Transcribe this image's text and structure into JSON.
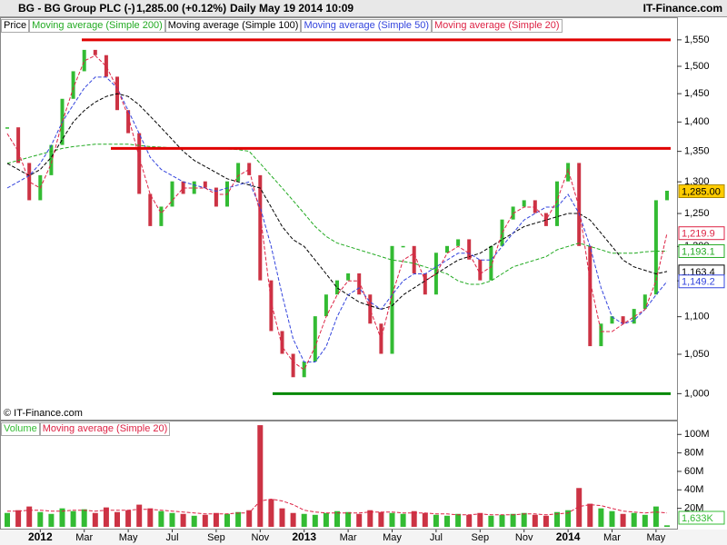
{
  "header": {
    "symbol": "BG - BG Group PLC (-)",
    "quote": "1,285.00 (+0.12%)",
    "period": "Daily  May 19 2014 10:09",
    "brand": "IT-Finance.com"
  },
  "copyright": "© IT-Finance.com",
  "chart_data": [
    {
      "type": "stock",
      "log_scale": true,
      "ylim": [
        987,
        1562
      ],
      "yticks": [
        {
          "value": 1000,
          "label": "1,000"
        },
        {
          "value": 1050,
          "label": "1,050"
        },
        {
          "value": 1100,
          "label": "1,100"
        },
        {
          "value": 1150,
          "label": "1,150"
        },
        {
          "value": 1200,
          "label": "1,200"
        },
        {
          "value": 1250,
          "label": "1,250"
        },
        {
          "value": 1300,
          "label": "1,300"
        },
        {
          "value": 1350,
          "label": "1,350"
        },
        {
          "value": 1400,
          "label": "1,400"
        },
        {
          "value": 1450,
          "label": "1,450"
        },
        {
          "value": 1500,
          "label": "1,500"
        },
        {
          "value": 1550,
          "label": "1,550"
        }
      ],
      "categories": [
        null,
        null,
        null,
        "2012",
        null,
        null,
        null,
        "Mar",
        null,
        null,
        null,
        "May",
        null,
        null,
        null,
        "Jul",
        null,
        null,
        null,
        "Sep",
        null,
        null,
        null,
        "Nov",
        null,
        null,
        null,
        "2013",
        null,
        null,
        null,
        "Mar",
        null,
        null,
        null,
        "May",
        null,
        null,
        null,
        "Jul",
        null,
        null,
        null,
        "Sep",
        null,
        null,
        null,
        "Nov",
        null,
        null,
        null,
        "2014",
        null,
        null,
        null,
        "Mar",
        null,
        null,
        null,
        "May",
        null
      ],
      "up_color": "#33bb33",
      "down_color": "#cc3344",
      "series": [
        {
          "name": "Price",
          "color": "#ffcc00",
          "last_label": "1,285.00",
          "values": [
            1390,
            1330,
            1270,
            1310,
            1360,
            1440,
            1490,
            1530,
            1520,
            1480,
            1420,
            1380,
            1280,
            1230,
            1260,
            1300,
            1280,
            1300,
            1290,
            1260,
            1300,
            1330,
            1310,
            1150,
            1080,
            1050,
            1020,
            1040,
            1100,
            1130,
            1150,
            1160,
            1130,
            1090,
            1050,
            1200,
            1200,
            1160,
            1130,
            1190,
            1200,
            1210,
            1180,
            1150,
            1200,
            1240,
            1260,
            1270,
            1250,
            1230,
            1300,
            1330,
            1200,
            1060,
            1090,
            1100,
            1090,
            1110,
            1130,
            1270,
            1285.0
          ]
        },
        {
          "name": "Moving average (Simple 200)",
          "color": "#22aa22",
          "last_label": "1,193.1",
          "values": [
            1330,
            1335,
            1340,
            1345,
            1350,
            1355,
            1358,
            1360,
            1362,
            1362,
            1362,
            1362,
            1360,
            1358,
            1357,
            1356,
            1356,
            1355,
            1355,
            1355,
            1354,
            1353,
            1350,
            1330,
            1310,
            1290,
            1270,
            1250,
            1230,
            1215,
            1205,
            1200,
            1195,
            1190,
            1185,
            1180,
            1178,
            1175,
            1170,
            1165,
            1160,
            1150,
            1145,
            1145,
            1150,
            1160,
            1170,
            1175,
            1180,
            1185,
            1195,
            1200,
            1205,
            1200,
            1195,
            1190,
            1190,
            1190,
            1192,
            1193,
            1193.1
          ]
        },
        {
          "name": "Moving average (Simple 100)",
          "color": "#000000",
          "last_label": "1,163.4",
          "values": [
            1330,
            1320,
            1310,
            1320,
            1340,
            1370,
            1400,
            1420,
            1435,
            1445,
            1450,
            1445,
            1430,
            1410,
            1390,
            1370,
            1350,
            1335,
            1325,
            1315,
            1305,
            1300,
            1295,
            1290,
            1260,
            1230,
            1210,
            1200,
            1180,
            1160,
            1140,
            1130,
            1120,
            1115,
            1110,
            1115,
            1130,
            1140,
            1150,
            1160,
            1170,
            1180,
            1185,
            1190,
            1200,
            1210,
            1220,
            1230,
            1235,
            1240,
            1245,
            1250,
            1250,
            1240,
            1220,
            1200,
            1180,
            1170,
            1165,
            1160,
            1163.4
          ]
        },
        {
          "name": "Moving average (Simple 50)",
          "color": "#3344dd",
          "last_label": "1,149.2",
          "values": [
            1290,
            1300,
            1310,
            1330,
            1360,
            1400,
            1430,
            1460,
            1480,
            1480,
            1460,
            1420,
            1380,
            1340,
            1320,
            1310,
            1300,
            1295,
            1290,
            1285,
            1290,
            1295,
            1300,
            1260,
            1200,
            1130,
            1070,
            1040,
            1040,
            1060,
            1100,
            1130,
            1140,
            1120,
            1110,
            1130,
            1150,
            1160,
            1160,
            1170,
            1180,
            1190,
            1190,
            1180,
            1180,
            1200,
            1220,
            1240,
            1250,
            1260,
            1260,
            1280,
            1250,
            1200,
            1140,
            1100,
            1090,
            1095,
            1110,
            1130,
            1149.2
          ]
        },
        {
          "name": "Moving average (Simple 20)",
          "color": "#dd2244",
          "last_label": "1,219.9",
          "values": [
            1380,
            1350,
            1300,
            1290,
            1330,
            1400,
            1460,
            1510,
            1520,
            1500,
            1460,
            1410,
            1340,
            1280,
            1250,
            1270,
            1290,
            1290,
            1290,
            1280,
            1280,
            1310,
            1320,
            1250,
            1120,
            1060,
            1040,
            1030,
            1060,
            1100,
            1130,
            1150,
            1150,
            1110,
            1070,
            1130,
            1180,
            1190,
            1150,
            1160,
            1190,
            1200,
            1190,
            1160,
            1170,
            1220,
            1250,
            1260,
            1260,
            1240,
            1270,
            1320,
            1260,
            1150,
            1080,
            1080,
            1090,
            1100,
            1110,
            1150,
            1219.9
          ]
        }
      ],
      "levels": [
        {
          "value": 1550,
          "color": "#e00000"
        },
        {
          "value": 1355,
          "color": "#e00000"
        },
        {
          "value": 1000,
          "color": "#008800"
        }
      ]
    },
    {
      "type": "bar",
      "ylim": [
        0,
        115000000
      ],
      "yticks": [
        {
          "value": 20000000,
          "label": "20M"
        },
        {
          "value": 40000000,
          "label": "40M"
        },
        {
          "value": 60000000,
          "label": "60M"
        },
        {
          "value": 80000000,
          "label": "80M"
        },
        {
          "value": 100000000,
          "label": "100M"
        }
      ],
      "series": [
        {
          "name": "Volume",
          "color": "#33bb33",
          "last_label": "1,633K",
          "values": [
            15000000,
            18000000,
            22000000,
            16000000,
            14000000,
            20000000,
            17000000,
            19000000,
            15000000,
            21000000,
            16000000,
            18000000,
            24000000,
            20000000,
            17000000,
            15000000,
            14000000,
            12000000,
            13000000,
            15000000,
            14000000,
            16000000,
            18000000,
            110000000,
            30000000,
            20000000,
            15000000,
            14000000,
            13000000,
            15000000,
            17000000,
            16000000,
            14000000,
            18000000,
            16000000,
            15000000,
            14000000,
            17000000,
            15000000,
            13000000,
            12000000,
            14000000,
            13000000,
            15000000,
            12000000,
            13000000,
            14000000,
            15000000,
            13000000,
            12000000,
            16000000,
            18000000,
            42000000,
            25000000,
            20000000,
            17000000,
            14000000,
            15000000,
            13000000,
            22000000,
            1633000
          ]
        },
        {
          "name": "Moving average (Simple 20)",
          "color": "#dd2244",
          "values": [
            17000000,
            17000000,
            18000000,
            18000000,
            17000000,
            17000000,
            18000000,
            18000000,
            17000000,
            18000000,
            18000000,
            18000000,
            19000000,
            19000000,
            18000000,
            17000000,
            16000000,
            15000000,
            14000000,
            14000000,
            14000000,
            15000000,
            15000000,
            28000000,
            30000000,
            28000000,
            24000000,
            18000000,
            16000000,
            15000000,
            15000000,
            15000000,
            15000000,
            16000000,
            16000000,
            16000000,
            15000000,
            15000000,
            15000000,
            14000000,
            14000000,
            13000000,
            13000000,
            14000000,
            13000000,
            13000000,
            13000000,
            14000000,
            14000000,
            13000000,
            14000000,
            15000000,
            22000000,
            24000000,
            23000000,
            20000000,
            17000000,
            16000000,
            15000000,
            16000000,
            15000000
          ]
        }
      ]
    }
  ]
}
